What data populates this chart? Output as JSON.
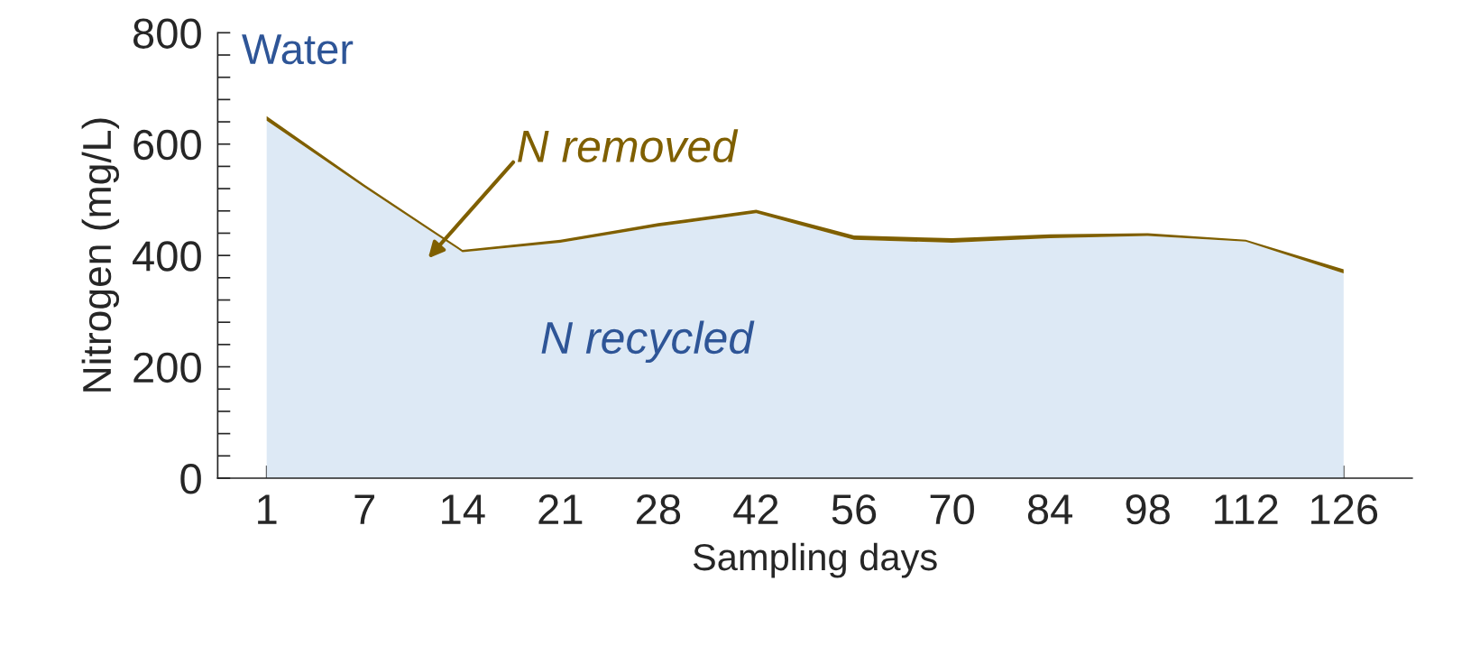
{
  "chart_data": {
    "type": "area",
    "stacked": true,
    "xlabel": "Sampling days",
    "ylabel": "Nitrogen (mg/L)",
    "categories": [
      "1",
      "7",
      "14",
      "21",
      "28",
      "42",
      "56",
      "70",
      "84",
      "98",
      "112",
      "126"
    ],
    "series": [
      {
        "name": "N recycled",
        "color": "#dde9f5",
        "values": [
          642,
          522,
          406,
          423,
          452,
          476,
          428,
          423,
          431,
          435,
          425,
          368
        ]
      },
      {
        "name": "N removed",
        "color": "#7f5f00",
        "values": [
          8,
          5,
          4,
          5,
          6,
          6,
          8,
          8,
          7,
          5,
          3,
          7
        ]
      }
    ],
    "ylim": [
      0,
      800
    ],
    "yticks": [
      0,
      {
        "value": 40,
        "label": null
      },
      {
        "value": 80,
        "label": null
      },
      {
        "value": 120,
        "label": null
      },
      {
        "value": 160,
        "label": null
      },
      200,
      {
        "value": 240,
        "label": null
      },
      {
        "value": 280,
        "label": null
      },
      {
        "value": 320,
        "label": null
      },
      {
        "value": 360,
        "label": null
      },
      400,
      {
        "value": 440,
        "label": null
      },
      {
        "value": 480,
        "label": null
      },
      {
        "value": 520,
        "label": null
      },
      {
        "value": 560,
        "label": null
      },
      600,
      {
        "value": 640,
        "label": null
      },
      {
        "value": 680,
        "label": null
      },
      {
        "value": 720,
        "label": null
      },
      {
        "value": 760,
        "label": null
      },
      800
    ],
    "annotations": [
      "Water"
    ],
    "grid": false,
    "legend": false
  }
}
